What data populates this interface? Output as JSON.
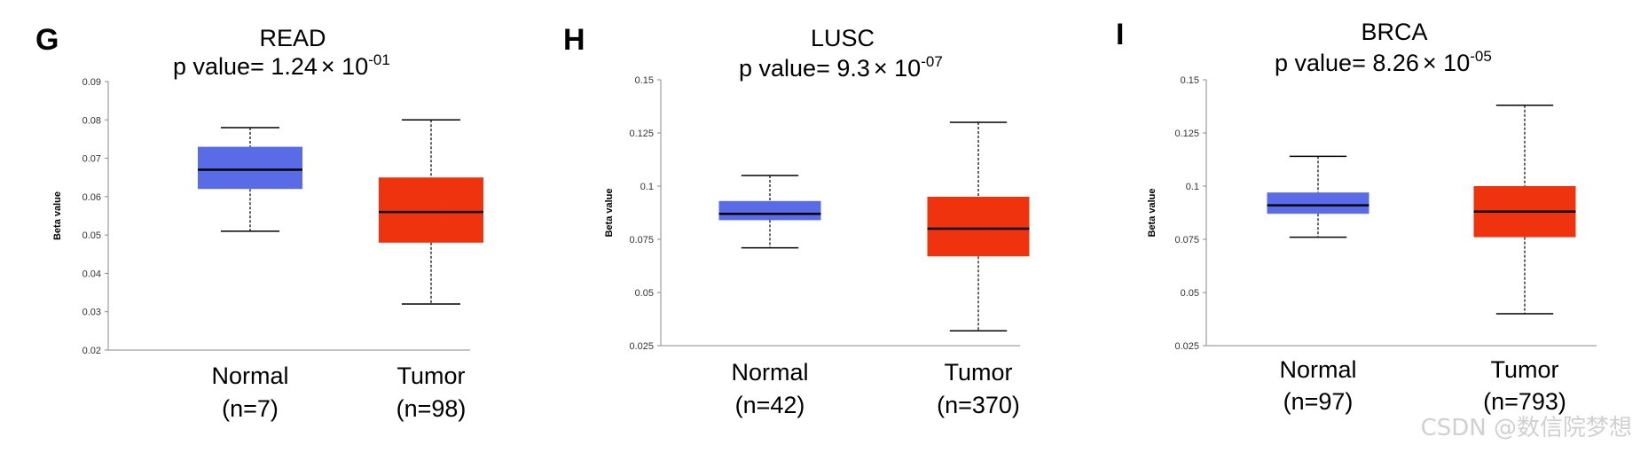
{
  "chart_data": [
    {
      "type": "box",
      "panel": "G",
      "title": "READ",
      "p_value": {
        "prefix": "p value= ",
        "mantissa": "1.24",
        "times": "×",
        "base": " 10",
        "exponent": "-01"
      },
      "ylabel": "Beta value",
      "ylim": [
        0.02,
        0.09
      ],
      "yticks": [
        0.02,
        0.03,
        0.04,
        0.05,
        0.06,
        0.07,
        0.08,
        0.09
      ],
      "ytick_labels": [
        "0.02",
        "0.03",
        "0.04",
        "0.05",
        "0.06",
        "0.07",
        "0.08",
        "0.09"
      ],
      "groups": [
        {
          "name": "Normal",
          "n_label": "(n=7)",
          "color": "#5a6be8",
          "whisker_low": 0.051,
          "q1": 0.062,
          "median": 0.067,
          "q3": 0.073,
          "whisker_high": 0.078
        },
        {
          "name": "Tumor",
          "n_label": "(n=98)",
          "color": "#f0330f",
          "whisker_low": 0.032,
          "q1": 0.048,
          "median": 0.056,
          "q3": 0.065,
          "whisker_high": 0.08
        }
      ]
    },
    {
      "type": "box",
      "panel": "H",
      "title": "LUSC",
      "p_value": {
        "prefix": "p value= ",
        "mantissa": "9.3",
        "times": "×",
        "base": " 10",
        "exponent": "-07"
      },
      "ylabel": "Beta value",
      "ylim": [
        0.025,
        0.15
      ],
      "yticks": [
        0.025,
        0.05,
        0.075,
        0.1,
        0.125,
        0.15
      ],
      "ytick_labels": [
        "0.025",
        "0.05",
        "0.075",
        "0.1",
        "0.125",
        "0.15"
      ],
      "groups": [
        {
          "name": "Normal",
          "n_label": "(n=42)",
          "color": "#5a6be8",
          "whisker_low": 0.071,
          "q1": 0.084,
          "median": 0.087,
          "q3": 0.093,
          "whisker_high": 0.105
        },
        {
          "name": "Tumor",
          "n_label": "(n=370)",
          "color": "#f0330f",
          "whisker_low": 0.032,
          "q1": 0.067,
          "median": 0.08,
          "q3": 0.095,
          "whisker_high": 0.13
        }
      ]
    },
    {
      "type": "box",
      "panel": "I",
      "title": "BRCA",
      "p_value": {
        "prefix": "p value= ",
        "mantissa": "8.26",
        "times": "×",
        "base": " 10",
        "exponent": "-05"
      },
      "ylabel": "Beta value",
      "ylim": [
        0.025,
        0.15
      ],
      "yticks": [
        0.025,
        0.05,
        0.075,
        0.1,
        0.125,
        0.15
      ],
      "ytick_labels": [
        "0.025",
        "0.05",
        "0.075",
        "0.1",
        "0.125",
        "0.15"
      ],
      "groups": [
        {
          "name": "Normal",
          "n_label": "(n=97)",
          "color": "#5a6be8",
          "whisker_low": 0.076,
          "q1": 0.087,
          "median": 0.091,
          "q3": 0.097,
          "whisker_high": 0.114
        },
        {
          "name": "Tumor",
          "n_label": "(n=793)",
          "color": "#f0330f",
          "whisker_low": 0.04,
          "q1": 0.076,
          "median": 0.088,
          "q3": 0.1,
          "whisker_high": 0.138
        }
      ]
    }
  ],
  "watermark": "CSDN @数信院梦想"
}
